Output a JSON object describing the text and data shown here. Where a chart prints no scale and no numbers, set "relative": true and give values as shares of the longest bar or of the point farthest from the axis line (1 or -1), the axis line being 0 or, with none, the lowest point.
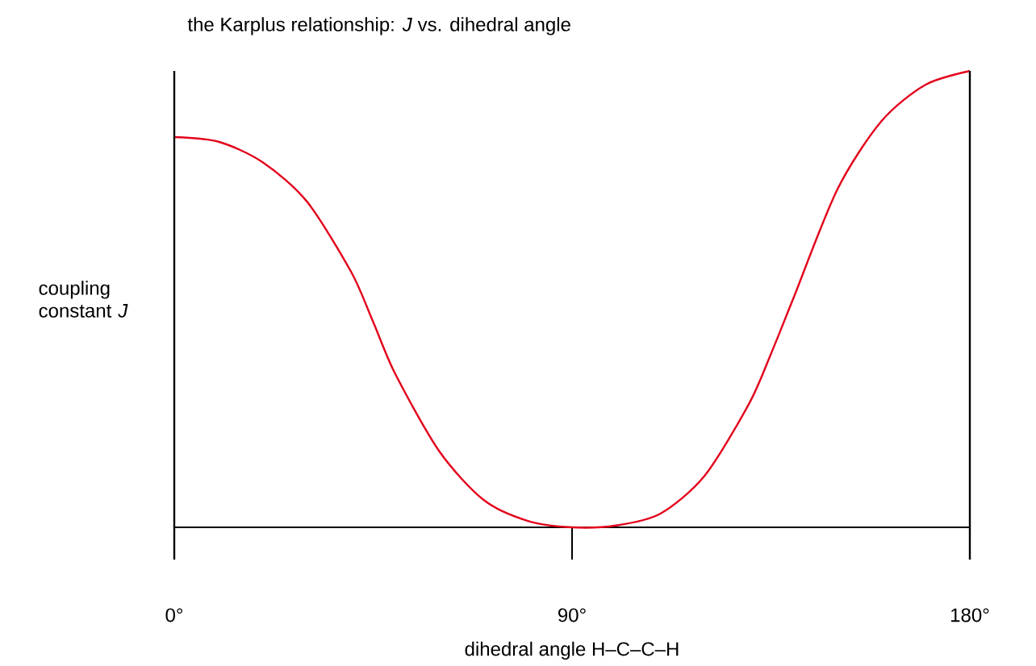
{
  "chart_data": {
    "type": "line",
    "title": "the Karplus relationship: *J* vs. dihedral angle",
    "xlabel": "dihedral angle H–C–C–H",
    "ylabel": "coupling constant *J*",
    "relative": true,
    "xlim": [
      0,
      180
    ],
    "xticks": [
      {
        "value": 0,
        "label": "0°"
      },
      {
        "value": 90,
        "label": "90°"
      },
      {
        "value": 180,
        "label": "180°"
      }
    ],
    "grid": false,
    "marker": "none",
    "line_style": "solid",
    "x": [
      0,
      10,
      20,
      30,
      40,
      45,
      50,
      60,
      70,
      80,
      90,
      100,
      110,
      120,
      130,
      135,
      140,
      150,
      160,
      170,
      180
    ],
    "series": [
      {
        "color": "#e3001b",
        "values": [
          0.855,
          0.845,
          0.8,
          0.714,
          0.56,
          0.45,
          0.336,
          0.166,
          0.06,
          0.014,
          0,
          0.004,
          0.03,
          0.113,
          0.27,
          0.38,
          0.5,
          0.74,
          0.89,
          0.97,
          1.0
        ]
      }
    ]
  }
}
